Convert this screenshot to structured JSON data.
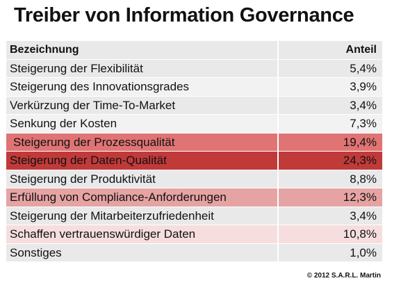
{
  "title": "Treiber von Information Governance",
  "copyright": "© 2012 S.A.R.L. Martin",
  "colors": {
    "row_light": "#e9e9e9",
    "row_lighter": "#f2f2f2",
    "row_medium_red": "#e07474",
    "row_dark_red": "#c13a3a",
    "row_pale_red": "#e6a3a3",
    "row_very_pale_red": "#f6dede"
  },
  "chart_data": {
    "type": "table",
    "title": "Treiber von Information Governance",
    "columns": [
      "Bezeichnung",
      "Anteil"
    ],
    "rows": [
      {
        "label": "Steigerung der Flexibilität",
        "value": "5,4%",
        "share": 5.4
      },
      {
        "label": "Steigerung des Innovationsgrades",
        "value": "3,9%",
        "share": 3.9
      },
      {
        "label": "Verkürzung der Time-To-Market",
        "value": "3,4%",
        "share": 3.4
      },
      {
        "label": "Senkung der Kosten",
        "value": "7,3%",
        "share": 7.3
      },
      {
        "label": "Steigerung der Prozessqualität",
        "value": "19,4%",
        "share": 19.4
      },
      {
        "label": "Steigerung der Daten-Qualität",
        "value": "24,3%",
        "share": 24.3
      },
      {
        "label": "Steigerung der Produktivität",
        "value": "8,8%",
        "share": 8.8
      },
      {
        "label": "Erfüllung von Compliance-Anforderungen",
        "value": "12,3%",
        "share": 12.3
      },
      {
        "label": "Steigerung der Mitarbeiterzufriedenheit",
        "value": "3,4%",
        "share": 3.4
      },
      {
        "label": "Schaffen vertrauenswürdiger Daten",
        "value": "10,8%",
        "share": 10.8
      },
      {
        "label": "Sonstiges",
        "value": "1,0%",
        "share": 1.0
      }
    ]
  }
}
